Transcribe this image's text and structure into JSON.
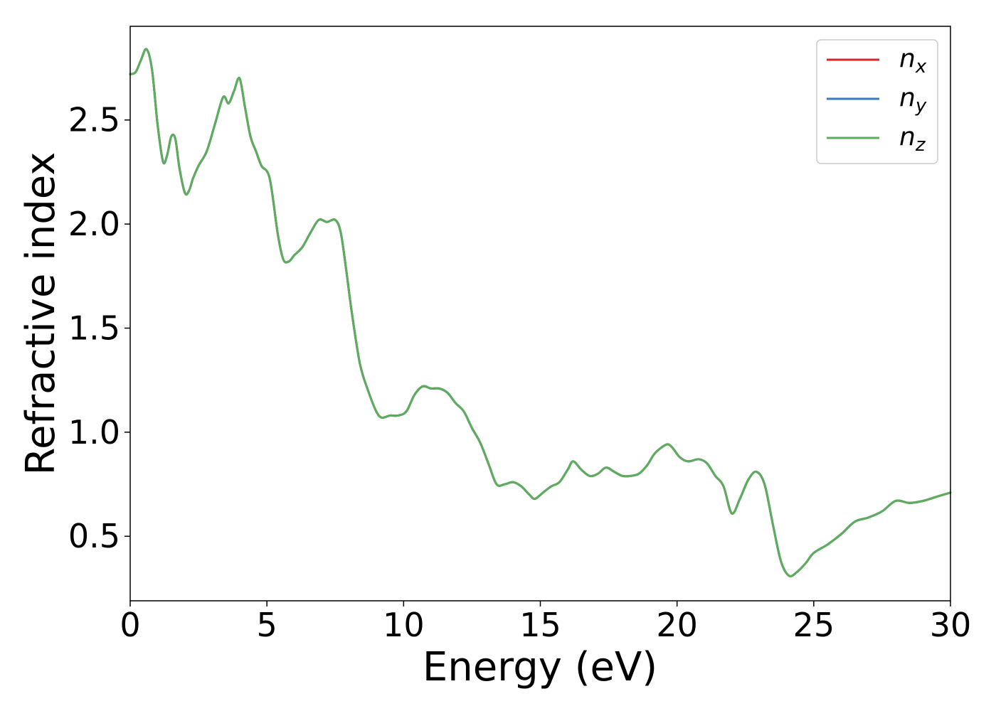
{
  "chart_data": {
    "type": "line",
    "xlabel": "Energy (eV)",
    "ylabel": "Refractive index",
    "xlim": [
      0,
      30
    ],
    "ylim": [
      0.19,
      2.95
    ],
    "xticks": [
      0,
      5,
      10,
      15,
      20,
      25,
      30
    ],
    "yticks": [
      0.5,
      1.0,
      1.5,
      2.0,
      2.5
    ],
    "xtick_labels": [
      "0",
      "5",
      "10",
      "15",
      "20",
      "25",
      "30"
    ],
    "ytick_labels": [
      "0.5",
      "1.0",
      "1.5",
      "2.0",
      "2.5"
    ],
    "grid": false,
    "legend_position": "top-right",
    "series": [
      {
        "name": "n",
        "subscript": "x",
        "color": "#d62728"
      },
      {
        "name": "n",
        "subscript": "y",
        "color": "#3a7bbf"
      },
      {
        "name": "n",
        "subscript": "z",
        "color": "#5cad5c"
      }
    ],
    "x": [
      0,
      0.2,
      0.4,
      0.6,
      0.8,
      1.0,
      1.2,
      1.35,
      1.5,
      1.65,
      1.8,
      2.0,
      2.15,
      2.3,
      2.5,
      2.8,
      3.1,
      3.4,
      3.6,
      3.8,
      4.0,
      4.2,
      4.4,
      4.6,
      4.8,
      5.1,
      5.4,
      5.6,
      5.8,
      6.0,
      6.3,
      6.6,
      6.9,
      7.2,
      7.5,
      7.7,
      7.9,
      8.1,
      8.4,
      8.7,
      9.0,
      9.2,
      9.5,
      9.8,
      10.1,
      10.4,
      10.7,
      11.0,
      11.3,
      11.6,
      11.9,
      12.2,
      12.5,
      12.8,
      13.1,
      13.4,
      13.7,
      14.0,
      14.3,
      14.6,
      14.8,
      15.1,
      15.4,
      15.7,
      16.0,
      16.2,
      16.5,
      16.8,
      17.1,
      17.4,
      17.7,
      18.0,
      18.3,
      18.6,
      18.9,
      19.2,
      19.6,
      19.8,
      20.1,
      20.4,
      20.8,
      21.1,
      21.4,
      21.7,
      22.0,
      22.3,
      22.6,
      22.9,
      23.2,
      23.5,
      23.8,
      24.1,
      24.4,
      24.7,
      25.0,
      25.5,
      26.0,
      26.5,
      27.0,
      27.5,
      28.0,
      28.5,
      29.0,
      29.5,
      30.0
    ],
    "values": [
      2.72,
      2.73,
      2.79,
      2.84,
      2.74,
      2.48,
      2.3,
      2.33,
      2.42,
      2.41,
      2.27,
      2.15,
      2.16,
      2.22,
      2.28,
      2.35,
      2.48,
      2.61,
      2.58,
      2.64,
      2.7,
      2.56,
      2.42,
      2.35,
      2.28,
      2.22,
      1.95,
      1.83,
      1.82,
      1.85,
      1.89,
      1.96,
      2.02,
      2.01,
      2.02,
      1.96,
      1.78,
      1.58,
      1.33,
      1.2,
      1.1,
      1.07,
      1.08,
      1.08,
      1.1,
      1.18,
      1.22,
      1.21,
      1.21,
      1.19,
      1.14,
      1.1,
      1.02,
      0.95,
      0.85,
      0.75,
      0.75,
      0.76,
      0.74,
      0.7,
      0.68,
      0.71,
      0.74,
      0.76,
      0.82,
      0.86,
      0.82,
      0.79,
      0.8,
      0.83,
      0.81,
      0.79,
      0.79,
      0.8,
      0.84,
      0.9,
      0.94,
      0.93,
      0.88,
      0.86,
      0.87,
      0.85,
      0.79,
      0.74,
      0.61,
      0.68,
      0.77,
      0.81,
      0.75,
      0.56,
      0.38,
      0.31,
      0.33,
      0.37,
      0.42,
      0.46,
      0.51,
      0.57,
      0.59,
      0.62,
      0.67,
      0.66,
      0.67,
      0.69,
      0.71
    ]
  }
}
